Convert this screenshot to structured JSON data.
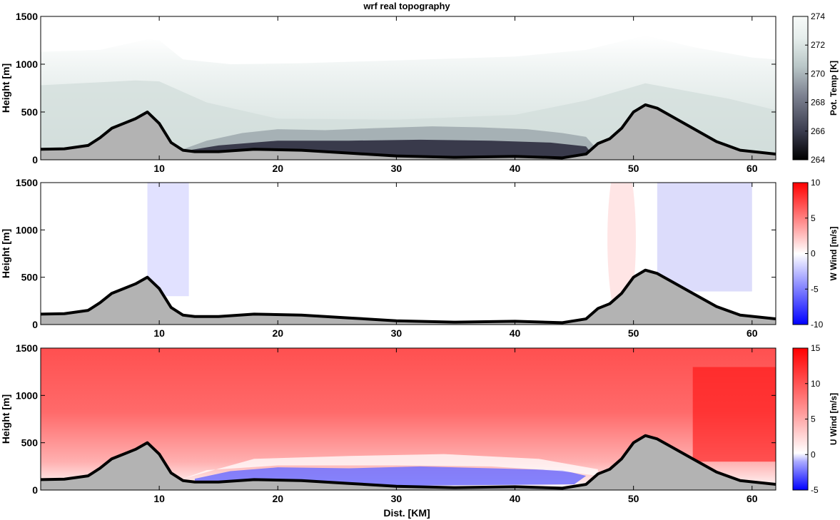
{
  "chart_data": [
    {
      "type": "heatmap",
      "title": "wrf real topography",
      "xlabel": "",
      "ylabel": "Height [m]",
      "xlim": [
        0,
        62
      ],
      "ylim": [
        0,
        1500
      ],
      "x_ticks": [
        "10",
        "20",
        "30",
        "40",
        "50",
        "60"
      ],
      "y_ticks": [
        "0",
        "500",
        "1000",
        "1500"
      ],
      "colorbar": {
        "label": "Pot. Temp [K]",
        "range": [
          264,
          274
        ],
        "ticks": [
          "264",
          "266",
          "268",
          "270",
          "272",
          "274"
        ],
        "colormap": [
          "#000000",
          "#3a3c4e",
          "#7d8291",
          "#b9c6c7",
          "#e6eeec",
          "#f7faf9"
        ]
      },
      "field": "potential-temperature"
    },
    {
      "type": "heatmap",
      "title": "",
      "xlabel": "",
      "ylabel": "Height [m]",
      "xlim": [
        0,
        62
      ],
      "ylim": [
        0,
        1500
      ],
      "x_ticks": [
        "10",
        "20",
        "30",
        "40",
        "50",
        "60"
      ],
      "y_ticks": [
        "0",
        "500",
        "1000",
        "1500"
      ],
      "colorbar": {
        "label": "W Wind [m/s]",
        "range": [
          -10,
          10
        ],
        "ticks": [
          "-10",
          "-5",
          "0",
          "5",
          "10"
        ],
        "colormap": [
          "#0000ff",
          "#8080ff",
          "#ffffff",
          "#ff8080",
          "#ff0000"
        ]
      },
      "field": "vertical-wind"
    },
    {
      "type": "heatmap",
      "title": "",
      "xlabel": "Dist. [KM]",
      "ylabel": "Height [m]",
      "xlim": [
        0,
        62
      ],
      "ylim": [
        0,
        1500
      ],
      "x_ticks": [
        "10",
        "20",
        "30",
        "40",
        "50",
        "60"
      ],
      "y_ticks": [
        "0",
        "500",
        "1000",
        "1500"
      ],
      "colorbar": {
        "label": "U Wind [m/s]",
        "range": [
          -5,
          15
        ],
        "ticks": [
          "-5",
          "0",
          "5",
          "10",
          "15"
        ],
        "colormap": [
          "#0000ff",
          "#aaaaff",
          "#ffffff",
          "#ff9999",
          "#ff0000"
        ]
      },
      "field": "horizontal-wind"
    }
  ],
  "terrain": {
    "x_km": [
      0,
      2,
      4,
      5,
      6,
      7,
      8,
      9,
      10,
      11,
      12,
      13,
      15,
      18,
      22,
      26,
      30,
      35,
      40,
      44,
      46,
      47,
      48,
      49,
      50,
      51,
      52,
      53,
      55,
      57,
      59,
      62
    ],
    "height_m": [
      110,
      115,
      150,
      230,
      330,
      380,
      430,
      500,
      380,
      180,
      100,
      85,
      85,
      110,
      100,
      70,
      40,
      25,
      35,
      20,
      60,
      170,
      220,
      330,
      500,
      575,
      540,
      470,
      330,
      190,
      100,
      60
    ],
    "fill": "#b3b3b3",
    "line": "#000000"
  }
}
